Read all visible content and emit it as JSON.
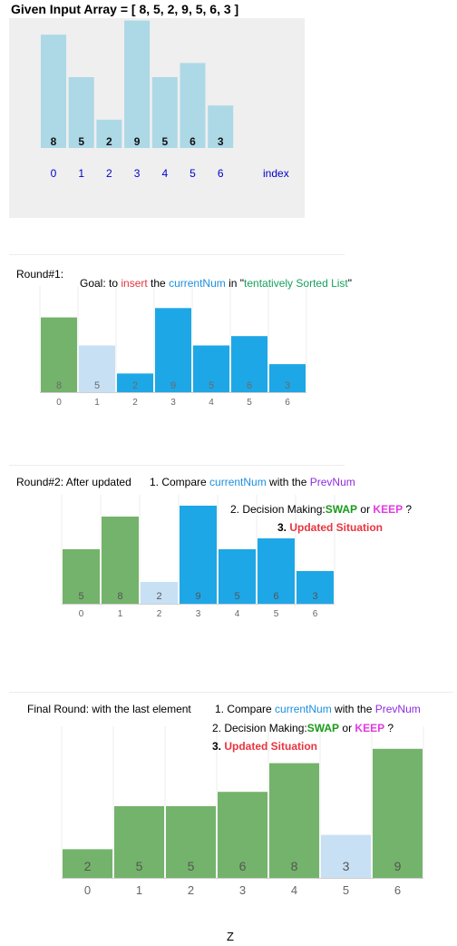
{
  "title": "Given Input Array = [ 8, 5, 2, 9, 5, 6, 3 ]",
  "colors": {
    "lightblue": "#add8e6",
    "green": "#74b36b",
    "blue": "#1ea7e6",
    "paleblue": "#c8e0f4",
    "indexblue": "#0000cc"
  },
  "chart_data": [
    {
      "type": "bar",
      "categories": [
        "0",
        "1",
        "2",
        "3",
        "4",
        "5",
        "6"
      ],
      "values": [
        8,
        5,
        2,
        9,
        5,
        6,
        3
      ],
      "value_labels": [
        "8",
        "5",
        "2",
        "9",
        "5",
        "6",
        "3"
      ],
      "xlabel": "index"
    },
    {
      "type": "bar",
      "categories": [
        "0",
        "1",
        "2",
        "3",
        "4",
        "5",
        "6"
      ],
      "values": [
        8,
        5,
        2,
        9,
        5,
        6,
        3
      ],
      "value_labels": [
        "8",
        "5",
        "2",
        "9",
        "5",
        "6",
        "3"
      ],
      "bar_colors": [
        "green",
        "paleblue",
        "blue",
        "blue",
        "blue",
        "blue",
        "blue"
      ]
    },
    {
      "type": "bar",
      "categories": [
        "0",
        "1",
        "2",
        "3",
        "4",
        "5",
        "6"
      ],
      "values": [
        5,
        8,
        2,
        9,
        5,
        6,
        3
      ],
      "value_labels": [
        "5",
        "8",
        "2",
        "9",
        "5",
        "6",
        "3"
      ],
      "bar_colors": [
        "green",
        "green",
        "paleblue",
        "blue",
        "blue",
        "blue",
        "blue"
      ]
    },
    {
      "type": "bar",
      "categories": [
        "0",
        "1",
        "2",
        "3",
        "4",
        "5",
        "6"
      ],
      "values": [
        2,
        5,
        5,
        6,
        8,
        3,
        9
      ],
      "value_labels": [
        "2",
        "5",
        "5",
        "6",
        "8",
        "3",
        "9"
      ],
      "bar_colors": [
        "green",
        "green",
        "green",
        "green",
        "green",
        "paleblue",
        "green"
      ]
    }
  ],
  "round1": {
    "label": "Round#1:",
    "goal_pre": "Goal: to ",
    "goal_insert": "insert",
    "goal_the": " the ",
    "goal_current": "currentNum",
    "goal_in": " in \"",
    "goal_sorted": "tentatively Sorted List",
    "goal_end": "\""
  },
  "round2": {
    "label": "Round#2: After updated",
    "step1_pre": "1. Compare ",
    "step1_current": "currentNum",
    "step1_mid": " with the ",
    "step1_prev": "PrevNum",
    "step2_pre": "2. Decision Making:",
    "step2_swap": "SWAP",
    "step2_or": " or ",
    "step2_keep": "KEEP",
    "step2_end": " ?",
    "step3_num": "3. ",
    "step3_text": "Updated Situation"
  },
  "final": {
    "label": "Final Round: with the last element",
    "step1_pre": "1. Compare ",
    "step1_current": "currentNum",
    "step1_mid": " with the ",
    "step1_prev": "PrevNum",
    "step2_pre": "2. Decision Making:",
    "step2_swap": "SWAP",
    "step2_or": " or ",
    "step2_keep": "KEEP",
    "step2_end": " ?",
    "step3_num": "3. ",
    "step3_text": "Updated Situation"
  },
  "footer": "Z"
}
